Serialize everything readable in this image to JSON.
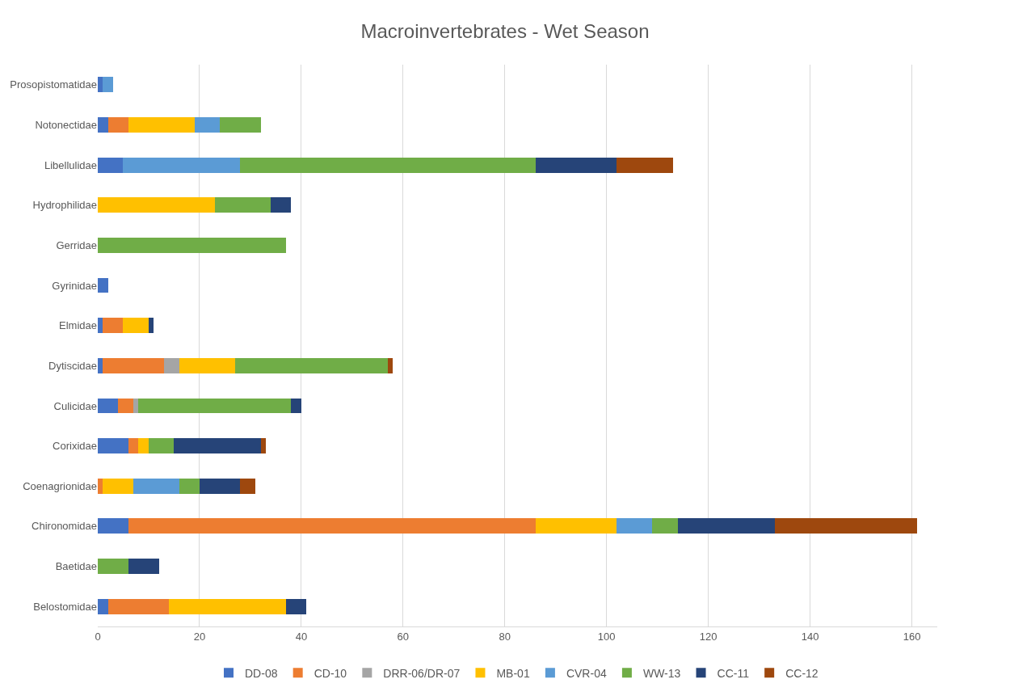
{
  "chart_data": {
    "type": "bar",
    "orientation": "horizontal",
    "stacked": true,
    "title": "Macroinvertebrates - Wet Season",
    "categories": [
      "Prosopistomatidae",
      "Notonectidae",
      "Libellulidae",
      "Hydrophilidae",
      "Gerridae",
      "Gyrinidae",
      "Elmidae",
      "Dytiscidae",
      "Culicidae",
      "Corixidae",
      "Coenagrionidae",
      "Chironomidae",
      "Baetidae",
      "Belostomidae"
    ],
    "series": [
      {
        "name": "DD-08",
        "color": "#4472c4",
        "values": [
          1,
          2,
          5,
          null,
          null,
          2,
          1,
          1,
          4,
          6,
          null,
          6,
          null,
          2
        ]
      },
      {
        "name": "CD-10",
        "color": "#ed7d31",
        "values": [
          null,
          4,
          null,
          null,
          null,
          null,
          4,
          12,
          3,
          2,
          1,
          80,
          null,
          12
        ]
      },
      {
        "name": "DRR-06/DR-07",
        "color": "#a5a5a5",
        "values": [
          null,
          null,
          null,
          null,
          null,
          null,
          null,
          3,
          1,
          null,
          null,
          null,
          null,
          null
        ]
      },
      {
        "name": "MB-01",
        "color": "#ffc000",
        "values": [
          null,
          13,
          null,
          23,
          null,
          null,
          5,
          11,
          null,
          2,
          6,
          16,
          null,
          23
        ]
      },
      {
        "name": "CVR-04",
        "color": "#5b9bd5",
        "values": [
          2,
          5,
          23,
          null,
          null,
          null,
          null,
          null,
          null,
          null,
          9,
          7,
          null,
          null
        ]
      },
      {
        "name": "WW-13",
        "color": "#70ad47",
        "values": [
          null,
          8,
          58,
          11,
          37,
          null,
          null,
          30,
          30,
          5,
          4,
          5,
          6,
          null
        ]
      },
      {
        "name": "CC-11",
        "color": "#264478",
        "values": [
          null,
          null,
          16,
          4,
          null,
          null,
          1,
          null,
          2,
          17,
          8,
          19,
          6,
          4
        ]
      },
      {
        "name": "CC-12",
        "color": "#9e480e",
        "values": [
          null,
          null,
          11,
          null,
          null,
          null,
          null,
          1,
          null,
          1,
          3,
          28,
          null,
          null
        ]
      }
    ],
    "xlim": [
      0,
      165
    ],
    "xticks": [
      0,
      20,
      40,
      60,
      80,
      100,
      120,
      140,
      160
    ],
    "grid": "x",
    "legend": "bottom"
  }
}
